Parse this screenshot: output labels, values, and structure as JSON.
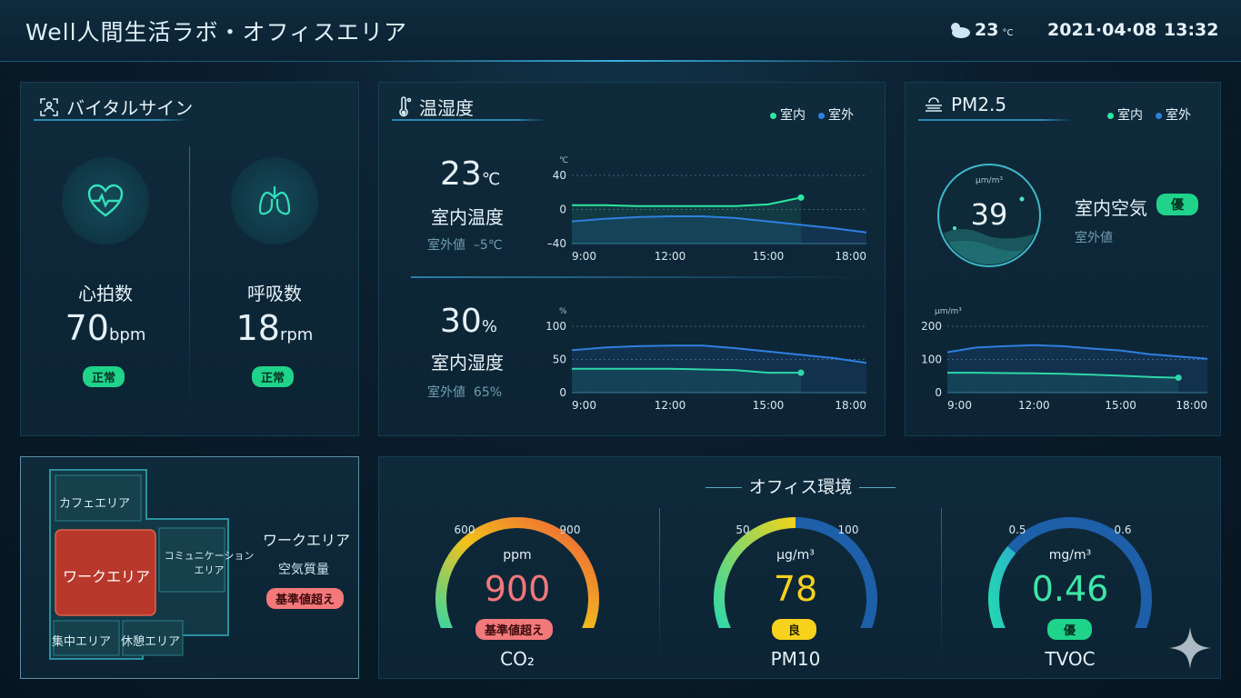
{
  "header": {
    "title": "Well人間生活ラボ・オフィスエリア",
    "weather_icon": "cloud-sun-icon",
    "temperature": "23",
    "temperature_unit": "°C",
    "date": "2021·04·08",
    "time": "13:32"
  },
  "vitals": {
    "title": "バイタルサイン",
    "heart": {
      "label": "心拍数",
      "value": "70",
      "unit": "bpm",
      "status": "正常"
    },
    "breath": {
      "label": "呼吸数",
      "value": "18",
      "unit": "rpm",
      "status": "正常"
    }
  },
  "climate": {
    "title": "温湿度",
    "legend_indoor": "室内",
    "legend_outdoor": "室外",
    "temp": {
      "value": "23",
      "unit": "℃",
      "label": "室内温度",
      "outdoor_label": "室外値",
      "outdoor_value": "–5℃",
      "axis_unit": "℃",
      "yticks": [
        "40",
        "0",
        "–40"
      ]
    },
    "humidity": {
      "value": "30",
      "unit": "%",
      "label": "室内湿度",
      "outdoor_label": "室外値",
      "outdoor_value": "65%",
      "axis_unit": "%",
      "yticks": [
        "100",
        "50",
        "0"
      ]
    },
    "xticks": [
      "9:00",
      "12:00",
      "15:00",
      "18:00"
    ]
  },
  "pm25": {
    "title": "PM2.5",
    "legend_indoor": "室内",
    "legend_outdoor": "室外",
    "circle_unit": "μm/m³",
    "value": "39",
    "label": "室内空気",
    "status": "優",
    "outdoor_label": "室外値",
    "axis_unit": "μm/m³",
    "yticks": [
      "200",
      "100",
      "0"
    ],
    "xticks": [
      "9:00",
      "12:00",
      "15:00",
      "18:00"
    ]
  },
  "floor": {
    "cafe": "カフェエリア",
    "work": "ワークエリア",
    "communication_1": "コミュニケーション",
    "communication_2": "エリア",
    "focus": "集中エリア",
    "rest": "休憩エリア",
    "side_title": "ワークエリア",
    "side_sub": "空気質量",
    "side_status": "基準値超え"
  },
  "office": {
    "title": "オフィス環境",
    "co2": {
      "min": "600",
      "max": "900",
      "unit": "ppm",
      "value": "900",
      "status": "基準値超え",
      "name": "CO₂",
      "level": 1.0
    },
    "pm10": {
      "min": "50",
      "max": "100",
      "unit": "μg/m³",
      "value": "78",
      "status": "良",
      "name": "PM10",
      "level": 0.5
    },
    "tvoc": {
      "min": "0.5",
      "max": "0.6",
      "unit": "mg/m³",
      "value": "0.46",
      "status": "優",
      "name": "TVOC",
      "level": 0.3
    }
  },
  "colors": {
    "indoor": "#2ee6a0",
    "outdoor": "#2f7fe0",
    "accent": "#3ab0e0",
    "alert": "#f2787a"
  },
  "chart_data": [
    {
      "type": "line",
      "ylabel": "℃",
      "x": [
        "9:00",
        "10:00",
        "11:00",
        "12:00",
        "13:00",
        "14:00",
        "15:00",
        "16:00",
        "17:00",
        "18:00"
      ],
      "ylim": [
        -40,
        40
      ],
      "series": [
        {
          "name": "室内",
          "values": [
            5,
            5,
            4,
            4,
            4,
            4,
            6,
            14,
            null,
            null
          ]
        },
        {
          "name": "室外",
          "values": [
            -14,
            -11,
            -9,
            -8,
            -8,
            -10,
            -14,
            -18,
            -22,
            -27
          ]
        }
      ]
    },
    {
      "type": "line",
      "ylabel": "%",
      "x": [
        "9:00",
        "10:00",
        "11:00",
        "12:00",
        "13:00",
        "14:00",
        "15:00",
        "16:00",
        "17:00",
        "18:00"
      ],
      "ylim": [
        0,
        100
      ],
      "series": [
        {
          "name": "室内",
          "values": [
            36,
            36,
            36,
            36,
            35,
            34,
            30,
            30,
            null,
            null
          ]
        },
        {
          "name": "室外",
          "values": [
            64,
            68,
            70,
            71,
            71,
            67,
            62,
            57,
            52,
            45
          ]
        }
      ]
    },
    {
      "type": "line",
      "ylabel": "μm/m³",
      "x": [
        "9:00",
        "10:00",
        "11:00",
        "12:00",
        "13:00",
        "14:00",
        "15:00",
        "16:00",
        "17:00",
        "18:00"
      ],
      "ylim": [
        0,
        200
      ],
      "series": [
        {
          "name": "室内",
          "values": [
            60,
            60,
            59,
            58,
            57,
            54,
            51,
            47,
            45,
            null
          ]
        },
        {
          "name": "室外",
          "values": [
            122,
            136,
            140,
            143,
            140,
            133,
            127,
            116,
            109,
            102
          ]
        }
      ]
    }
  ]
}
